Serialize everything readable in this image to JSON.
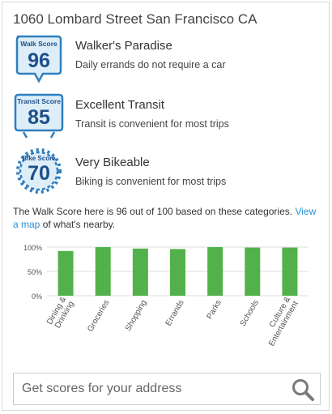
{
  "address": "1060 Lombard Street San Francisco CA",
  "scores": [
    {
      "badge_label": "Walk Score",
      "value": "96",
      "title": "Walker's Paradise",
      "description": "Daily errands do not require a car",
      "icon": "walk-score-badge-icon"
    },
    {
      "badge_label": "Transit Score",
      "value": "85",
      "title": "Excellent Transit",
      "description": "Transit is convenient for most trips",
      "icon": "transit-score-badge-icon"
    },
    {
      "badge_label": "Bike Score",
      "value": "70",
      "title": "Very Bikeable",
      "description": "Biking is convenient for most trips",
      "icon": "bike-score-badge-icon"
    }
  ],
  "summary": {
    "text_before": "The Walk Score here is 96 out of 100 based on these categories. ",
    "link_label": "View a map",
    "text_after": " of what's nearby."
  },
  "chart_data": {
    "type": "bar",
    "categories": [
      "Dining & Drinking",
      "Groceries",
      "Shopping",
      "Errands",
      "Parks",
      "Schools",
      "Culture & Entertainment"
    ],
    "values": [
      92,
      100,
      97,
      96,
      100,
      99,
      99
    ],
    "yticks": [
      "100%",
      "50%",
      "0%"
    ],
    "ylim": [
      0,
      100
    ],
    "grid": true,
    "bar_color": "#52b14a"
  },
  "search": {
    "placeholder": "Get scores for your address",
    "icon": "search-icon"
  },
  "colors": {
    "badge_fill": "#ddeef9",
    "badge_stroke": "#2f7fc0",
    "badge_text": "#1e4f8a",
    "link": "#2a8fd6"
  }
}
